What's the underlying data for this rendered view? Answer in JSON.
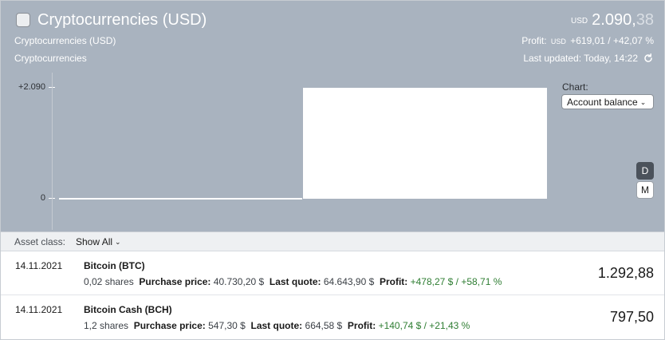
{
  "header": {
    "title": "Cryptocurrencies (USD)",
    "subtitle1": "Cryptocurrencies (USD)",
    "subtitle2": "Cryptocurrencies",
    "balance_currency": "USD",
    "balance_integer": "2.090,",
    "balance_decimal": "38",
    "profit_label": "Profit:",
    "profit_currency": "USD",
    "profit_value": "+619,01 / +42,07 %",
    "last_updated": "Last updated: Today, 14:22",
    "refresh_icon": "refresh-icon"
  },
  "chart": {
    "label": "Chart:",
    "select_value": "Account balance",
    "period_d": "D",
    "period_m": "M"
  },
  "chart_data": {
    "type": "area",
    "y_ticks": [
      "+2.090",
      "0"
    ],
    "ylim": [
      0,
      2090
    ],
    "segments": [
      {
        "value": 0
      },
      {
        "value": 2090
      }
    ]
  },
  "filter": {
    "label": "Asset class:",
    "value": "Show All"
  },
  "assets": [
    {
      "date": "14.11.2021",
      "name": "Bitcoin (BTC)",
      "shares": "0,02 shares",
      "purchase_label": "Purchase price:",
      "purchase_value": "40.730,20 $",
      "quote_label": "Last quote:",
      "quote_value": "64.643,90 $",
      "profit_label": "Profit:",
      "profit_value": "+478,27 $ / +58,71 %",
      "value": "1.292,88"
    },
    {
      "date": "14.11.2021",
      "name": "Bitcoin Cash (BCH)",
      "shares": "1,2 shares",
      "purchase_label": "Purchase price:",
      "purchase_value": "547,30 $",
      "quote_label": "Last quote:",
      "quote_value": "664,58 $",
      "profit_label": "Profit:",
      "profit_value": "+140,74 $ / +21,43 %",
      "value": "797,50"
    }
  ]
}
